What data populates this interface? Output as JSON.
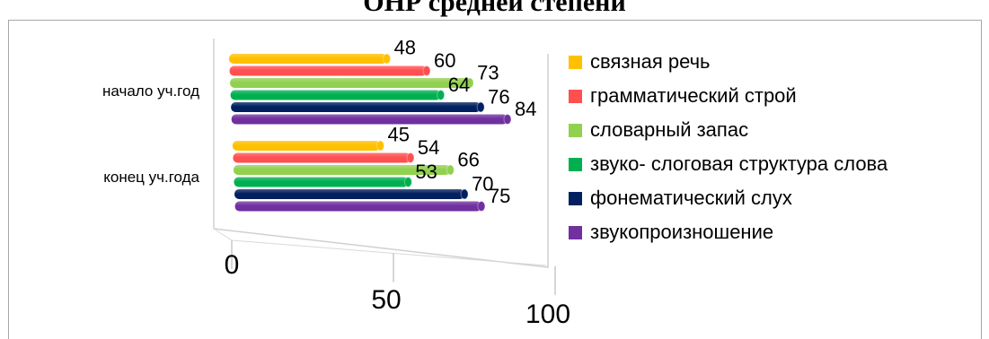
{
  "chart_data": {
    "type": "bar",
    "orientation": "horizontal",
    "style": "3d-cylinder",
    "title": "ОНР средней степени",
    "categories": [
      "начало уч.год",
      "конец уч.года"
    ],
    "series": [
      {
        "name": "связная речь",
        "color": "#ffc000",
        "values": [
          48,
          45
        ]
      },
      {
        "name": "грамматический строй",
        "color": "#ff5050",
        "values": [
          60,
          54
        ]
      },
      {
        "name": "словарный запас",
        "color": "#92d050",
        "values": [
          73,
          66
        ]
      },
      {
        "name": "звуко- слоговая структура слова",
        "color": "#00b050",
        "values": [
          64,
          53
        ]
      },
      {
        "name": "фонематический слух",
        "color": "#002060",
        "values": [
          76,
          70
        ]
      },
      {
        "name": "звукопроизношение",
        "color": "#7030a0",
        "values": [
          84,
          75
        ]
      }
    ],
    "x_axis": {
      "ticks": [
        "0",
        "50",
        "100"
      ],
      "range": [
        0,
        100
      ]
    },
    "legend_position": "right",
    "data_labels": true,
    "grid": true
  }
}
